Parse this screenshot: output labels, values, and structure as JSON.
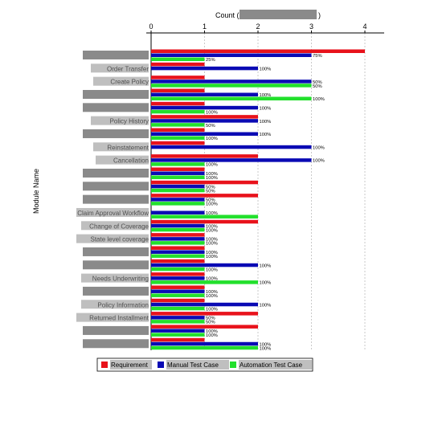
{
  "chart_data": {
    "type": "bar",
    "orientation": "horizontal",
    "x_axis_position": "top",
    "xlabel": "Count (",
    "xlabel_suffix": ")",
    "ylabel": "Module Name",
    "xlim": [
      0,
      4.4
    ],
    "xticks": [
      "0",
      "1",
      "2",
      "3",
      "4"
    ],
    "grid": "vertical dashed",
    "legend_position": "bottom",
    "colors": {
      "requirement": "#e8121b",
      "manual": "#0a0ab4",
      "automation": "#22e02c",
      "redaction": "#8a8a8a"
    },
    "categories": [
      "",
      "Order Transfer",
      "Create Policy",
      "",
      "",
      "Policy History",
      "",
      "Reinstatement",
      "Cancellation",
      "",
      "",
      "",
      "Claim Approval Workflow",
      "Change of Coverage",
      "State level coverage",
      "",
      "",
      "Needs Underwriting",
      "",
      "Policy Information",
      "Returned Installment",
      "",
      ""
    ],
    "series": [
      {
        "key": "requirement",
        "values": [
          4,
          1,
          1,
          1,
          1,
          2,
          1,
          1,
          2,
          1,
          2,
          2,
          0,
          2,
          1,
          1,
          1,
          1,
          1,
          1,
          2,
          2,
          1
        ]
      },
      {
        "key": "manual",
        "values": [
          3,
          2,
          3,
          2,
          2,
          2,
          2,
          3,
          3,
          1,
          1,
          1,
          1,
          1,
          1,
          1,
          2,
          1,
          1,
          2,
          1,
          1,
          2
        ]
      },
      {
        "key": "automation",
        "values": [
          1,
          0,
          3,
          3,
          1,
          1,
          1,
          0,
          1,
          1,
          1,
          1,
          2,
          1,
          1,
          1,
          1,
          2,
          1,
          1,
          1,
          1,
          2
        ]
      }
    ],
    "data_labels": [
      [
        "75%",
        "25%"
      ],
      [
        "100%"
      ],
      [
        "50%",
        "50%"
      ],
      [
        "100%",
        "100%"
      ],
      [
        "100%",
        "100%"
      ],
      [
        "100%",
        "50%"
      ],
      [
        "100%",
        "100%"
      ],
      [
        "100%"
      ],
      [
        "100%",
        "100%"
      ],
      [
        "100%",
        "100%"
      ],
      [
        "50%",
        "50%"
      ],
      [
        "50%",
        "100%"
      ],
      [
        "100%"
      ],
      [
        "100%",
        "100%"
      ],
      [
        "100%",
        "100%"
      ],
      [
        "100%",
        "100%"
      ],
      [
        "100%",
        "100%"
      ],
      [
        "100%",
        "100%"
      ],
      [
        "100%",
        "100%"
      ],
      [
        "100%",
        "100%"
      ],
      [
        "50%",
        "50%"
      ],
      [
        "100%",
        "100%"
      ],
      [
        "100%",
        "100%"
      ]
    ],
    "legend": [
      "Requirement",
      "Manual Test Case",
      "Automation Test Case"
    ]
  }
}
